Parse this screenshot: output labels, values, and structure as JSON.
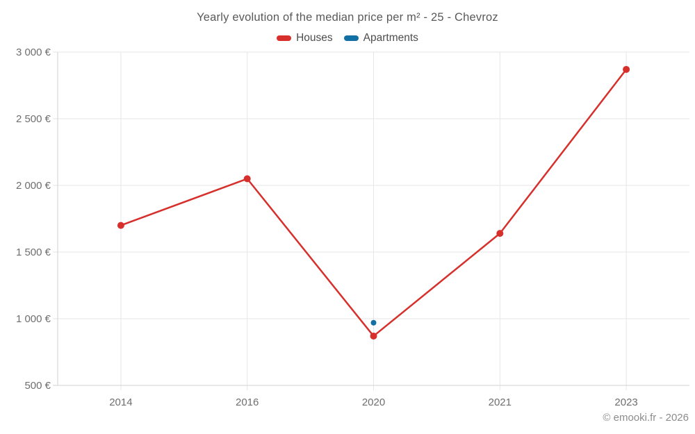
{
  "title": "Yearly evolution of the median price per m² - 25 - Chevroz",
  "footer": "© emooki.fr - 2026",
  "legend": [
    {
      "label": "Houses",
      "color": "#d7302c"
    },
    {
      "label": "Apartments",
      "color": "#1370a5"
    }
  ],
  "colors": {
    "houses": "#d7302c",
    "apartments": "#1370a5",
    "gridline": "#e6e6e6",
    "axis_line": "#d2d2d2",
    "tick_text": "#6e6e6e",
    "title_text": "#595959",
    "footer_text": "#8c8c8c"
  },
  "chart_data": {
    "type": "line",
    "title": "Yearly evolution of the median price per m² - 25 - Chevroz",
    "categories": [
      "2014",
      "2016",
      "2020",
      "2021",
      "2023"
    ],
    "series": [
      {
        "name": "Houses",
        "color": "#d7302c",
        "values": [
          1700,
          2050,
          870,
          1640,
          2870
        ]
      },
      {
        "name": "Apartments",
        "color": "#1370a5",
        "values": [
          null,
          null,
          970,
          null,
          null
        ]
      }
    ],
    "xlabel": "",
    "ylabel": "",
    "ylim": [
      500,
      3000
    ],
    "y_ticks": [
      {
        "value": 500,
        "label": "500 €"
      },
      {
        "value": 1000,
        "label": "1 000 €"
      },
      {
        "value": 1500,
        "label": "1 500 €"
      },
      {
        "value": 2000,
        "label": "2 000 €"
      },
      {
        "value": 2500,
        "label": "2 500 €"
      },
      {
        "value": 3000,
        "label": "3 000 €"
      }
    ],
    "grid": true,
    "legend_position": "top"
  }
}
